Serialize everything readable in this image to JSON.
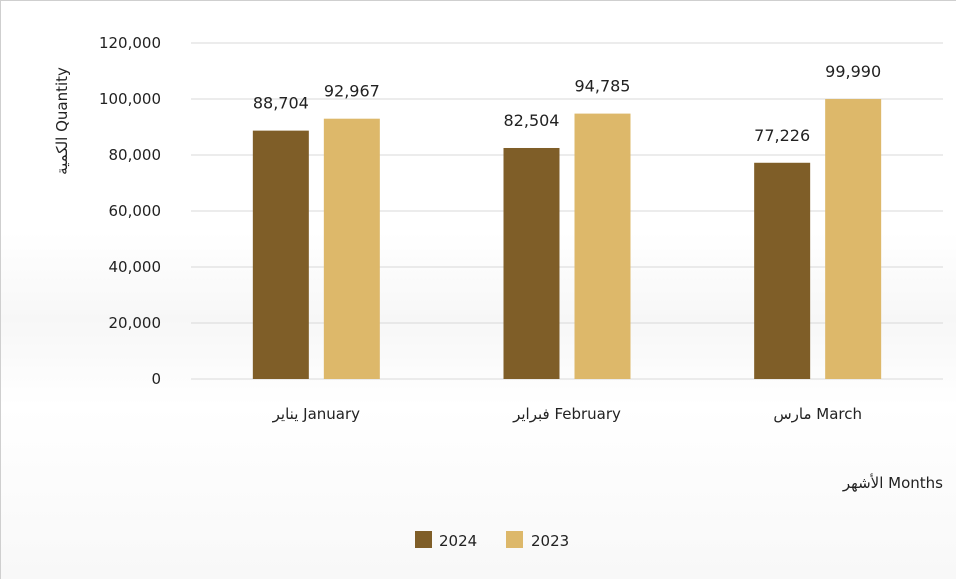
{
  "chart_data": {
    "type": "bar",
    "title": "",
    "categories": [
      "يناير January",
      "فبراير February",
      "مارس March"
    ],
    "series": [
      {
        "name": "2024",
        "values": [
          88704,
          82504,
          77226
        ],
        "color": "#7f5e28"
      },
      {
        "name": "2023",
        "values": [
          92967,
          94785,
          99990
        ],
        "color": "#ddb86a"
      }
    ],
    "data_labels": [
      [
        "88,704",
        "82,504",
        "77,226"
      ],
      [
        "92,967",
        "94,785",
        "99,990"
      ]
    ],
    "ylabel": "الكمية Quantity",
    "xlabel": "الأشهر Months",
    "ylim": [
      0,
      120000
    ],
    "yticks": [
      0,
      20000,
      40000,
      60000,
      80000,
      100000,
      120000
    ],
    "ytick_labels": [
      "0",
      "20,000",
      "40,000",
      "60,000",
      "80,000",
      "100,000",
      "120,000"
    ],
    "grid": true,
    "legend_position": "bottom"
  },
  "colors": {
    "gridline": "#d9d9d9",
    "background": "#ffffff"
  }
}
